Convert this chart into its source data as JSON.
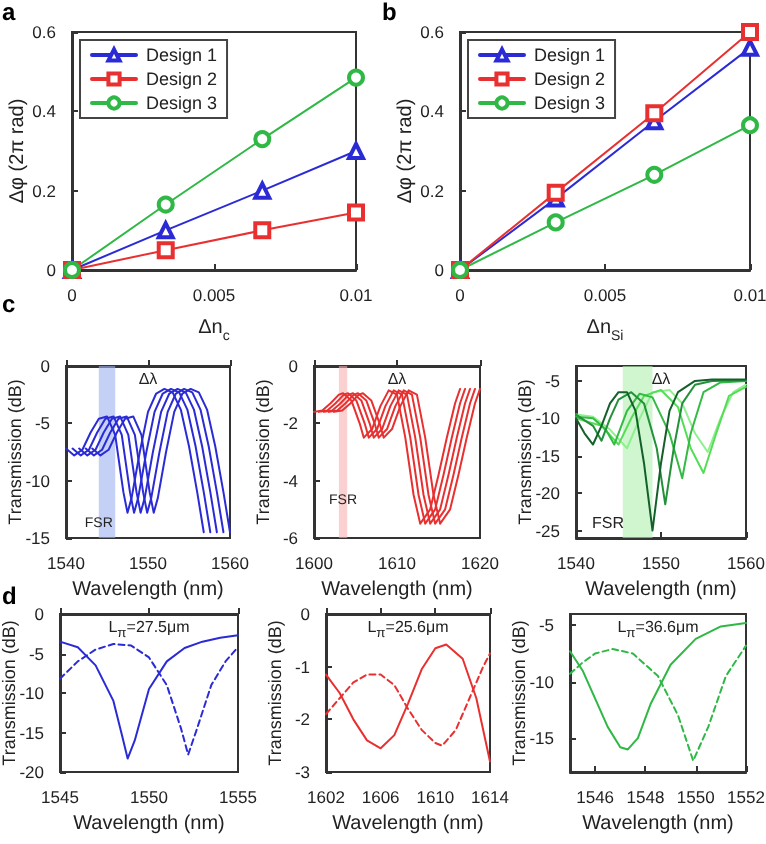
{
  "chart_data": [
    {
      "type": "line",
      "title": "a",
      "xlabel": "Δn$_{c}$",
      "ylabel": "Δφ (2π rad)",
      "xlim": [
        0,
        0.01
      ],
      "ylim": [
        0,
        0.6
      ],
      "xticks": [
        0,
        0.005,
        0.01
      ],
      "yticks": [
        0,
        0.2,
        0.4,
        0.6
      ],
      "legend": "top left",
      "x": [
        0,
        0.0033,
        0.0067,
        0.01
      ],
      "series": [
        {
          "name": "Design 1",
          "color": "#2b2bd6",
          "marker": "triangle",
          "values": [
            0,
            0.1,
            0.2,
            0.3
          ]
        },
        {
          "name": "Design 2",
          "color": "#e83030",
          "marker": "square",
          "values": [
            0,
            0.05,
            0.1,
            0.145
          ]
        },
        {
          "name": "Design 3",
          "color": "#2fb845",
          "marker": "circle",
          "values": [
            0,
            0.165,
            0.33,
            0.485
          ]
        }
      ]
    },
    {
      "type": "line",
      "title": "b",
      "xlabel": "Δn$_{Si}$",
      "ylabel": "Δφ (2π rad)",
      "xlim": [
        0,
        0.01
      ],
      "ylim": [
        0,
        0.6
      ],
      "xticks": [
        0,
        0.005,
        0.01
      ],
      "yticks": [
        0,
        0.2,
        0.4,
        0.6
      ],
      "legend": "top left",
      "x": [
        0,
        0.0033,
        0.0067,
        0.01
      ],
      "series": [
        {
          "name": "Design 1",
          "color": "#2b2bd6",
          "marker": "triangle",
          "values": [
            0,
            0.18,
            0.375,
            0.56
          ]
        },
        {
          "name": "Design 2",
          "color": "#e83030",
          "marker": "square",
          "values": [
            0,
            0.195,
            0.395,
            0.6
          ]
        },
        {
          "name": "Design 3",
          "color": "#2fb845",
          "marker": "circle",
          "values": [
            0,
            0.12,
            0.24,
            0.365
          ]
        }
      ]
    },
    {
      "type": "line",
      "title": "c",
      "xlabel": "Wavelength (nm)",
      "ylabel": "Transmission (dB)",
      "xlim": [
        1540,
        1560
      ],
      "ylim": [
        -15,
        0
      ],
      "xticks": [
        1540,
        1550,
        1560
      ],
      "yticks": [
        -15,
        -10,
        -5,
        0
      ],
      "bands": [
        {
          "axis": "x",
          "from": 1544,
          "to": 1546,
          "color": "#9fb0f0"
        }
      ],
      "annotations": [
        "Δλ",
        {
          "text": "FSR",
          "x": 1544,
          "y": -13.8
        }
      ],
      "series": [
        {
          "color": "#2b2bd6",
          "x": [
            1540,
            1541,
            1542,
            1543,
            1544,
            1545,
            1546,
            1547,
            1547.5,
            1548,
            1549,
            1550,
            1551,
            1552,
            1553,
            1554,
            1555,
            1556,
            1556.8
          ],
          "values": [
            -7.2,
            -7.8,
            -7.3,
            -5.8,
            -4.6,
            -4.4,
            -6.0,
            -11.0,
            -12.8,
            -11.5,
            -7.5,
            -4.0,
            -2.4,
            -2.0,
            -2.3,
            -3.8,
            -7.0,
            -11.0,
            -14.5
          ]
        },
        {
          "color": "#2b2bd6",
          "x": [
            1540.8,
            1541.8,
            1542.8,
            1543.8,
            1544.8,
            1545.8,
            1546.8,
            1547.8,
            1548.3,
            1548.8,
            1549.8,
            1550.8,
            1551.8,
            1552.8,
            1553.8,
            1554.8,
            1555.8,
            1556.8,
            1557.6
          ],
          "values": [
            -7.2,
            -7.8,
            -7.3,
            -5.8,
            -4.6,
            -4.4,
            -6.0,
            -11.0,
            -12.8,
            -11.5,
            -7.5,
            -4.0,
            -2.4,
            -2.0,
            -2.3,
            -3.8,
            -7.0,
            -11.0,
            -14.5
          ]
        },
        {
          "color": "#2b2bd6",
          "x": [
            1541.6,
            1542.6,
            1543.6,
            1544.6,
            1545.6,
            1546.6,
            1547.6,
            1548.6,
            1549.1,
            1549.6,
            1550.6,
            1551.6,
            1552.6,
            1553.6,
            1554.6,
            1555.6,
            1556.6,
            1557.6,
            1558.4
          ],
          "values": [
            -7.2,
            -7.8,
            -7.3,
            -5.8,
            -4.6,
            -4.4,
            -6.0,
            -11.0,
            -12.8,
            -11.5,
            -7.5,
            -4.0,
            -2.4,
            -2.0,
            -2.3,
            -3.8,
            -7.0,
            -11.0,
            -14.5
          ]
        },
        {
          "color": "#2b2bd6",
          "x": [
            1542.4,
            1543.4,
            1544.4,
            1545.4,
            1546.4,
            1547.4,
            1548.4,
            1549.4,
            1549.9,
            1550.4,
            1551.4,
            1552.4,
            1553.4,
            1554.4,
            1555.4,
            1556.4,
            1557.4,
            1558.4,
            1559.2
          ],
          "values": [
            -7.2,
            -7.8,
            -7.3,
            -5.8,
            -4.6,
            -4.4,
            -6.0,
            -11.0,
            -12.8,
            -11.5,
            -7.5,
            -4.0,
            -2.4,
            -2.0,
            -2.3,
            -3.8,
            -7.0,
            -11.0,
            -14.5
          ]
        },
        {
          "color": "#2b2bd6",
          "x": [
            1543.2,
            1544.2,
            1545.2,
            1546.2,
            1547.2,
            1548.2,
            1549.2,
            1550.2,
            1550.7,
            1551.2,
            1552.2,
            1553.2,
            1554.2,
            1555.2,
            1556.2,
            1557.2,
            1558.2,
            1559.2,
            1560
          ],
          "values": [
            -7.2,
            -7.8,
            -7.3,
            -5.8,
            -4.6,
            -4.4,
            -6.0,
            -11.0,
            -12.8,
            -11.5,
            -7.5,
            -4.0,
            -2.4,
            -2.0,
            -2.3,
            -3.8,
            -7.0,
            -11.0,
            -14.5
          ]
        }
      ]
    },
    {
      "type": "line",
      "xlabel": "Wavelength (nm)",
      "ylabel": "Transmission (dB)",
      "xlim": [
        1600,
        1620
      ],
      "ylim": [
        -6,
        0
      ],
      "xticks": [
        1600,
        1610,
        1620
      ],
      "yticks": [
        -6,
        -4,
        -2,
        0
      ],
      "bands": [
        {
          "axis": "x",
          "from": 1603,
          "to": 1604,
          "color": "#f6b0b0"
        }
      ],
      "annotations": [
        "Δλ",
        {
          "text": "FSR",
          "x": 1603.5,
          "y": -4.7
        }
      ],
      "series": [
        {
          "color": "#e83030",
          "x": [
            1600,
            1601,
            1602,
            1603,
            1603.5,
            1604.5,
            1605.5,
            1606,
            1607,
            1608,
            1609,
            1610,
            1611,
            1612,
            1612.8,
            1614,
            1615,
            1616,
            1617,
            1617.6
          ],
          "values": [
            -1.6,
            -1.55,
            -1.3,
            -1.0,
            -0.95,
            -1.2,
            -2.0,
            -2.5,
            -2.2,
            -1.4,
            -0.85,
            -1.0,
            -2.5,
            -4.5,
            -5.5,
            -5.0,
            -3.8,
            -2.5,
            -1.3,
            -0.8
          ]
        },
        {
          "color": "#e83030",
          "x": [
            1600.6,
            1601.6,
            1602.6,
            1603.6,
            1604.1,
            1605.1,
            1606.1,
            1606.6,
            1607.6,
            1608.6,
            1609.6,
            1610.6,
            1611.6,
            1612.6,
            1613.4,
            1614.6,
            1615.6,
            1616.6,
            1617.6,
            1618.2
          ],
          "values": [
            -1.6,
            -1.55,
            -1.3,
            -1.0,
            -0.95,
            -1.2,
            -2.0,
            -2.5,
            -2.2,
            -1.4,
            -0.85,
            -1.0,
            -2.5,
            -4.5,
            -5.5,
            -5.0,
            -3.8,
            -2.5,
            -1.3,
            -0.8
          ]
        },
        {
          "color": "#e83030",
          "x": [
            1601.2,
            1602.2,
            1603.2,
            1604.2,
            1604.7,
            1605.7,
            1606.7,
            1607.2,
            1608.2,
            1609.2,
            1610.2,
            1611.2,
            1612.2,
            1613.2,
            1614,
            1615.2,
            1616.2,
            1617.2,
            1618.2,
            1618.8
          ],
          "values": [
            -1.6,
            -1.55,
            -1.3,
            -1.0,
            -0.95,
            -1.2,
            -2.0,
            -2.5,
            -2.2,
            -1.4,
            -0.85,
            -1.0,
            -2.5,
            -4.5,
            -5.5,
            -5.0,
            -3.8,
            -2.5,
            -1.3,
            -0.8
          ]
        },
        {
          "color": "#e83030",
          "x": [
            1601.8,
            1602.8,
            1603.8,
            1604.8,
            1605.3,
            1606.3,
            1607.3,
            1607.8,
            1608.8,
            1609.8,
            1610.8,
            1611.8,
            1612.8,
            1613.8,
            1614.6,
            1615.8,
            1616.8,
            1617.8,
            1618.8,
            1619.4
          ],
          "values": [
            -1.6,
            -1.55,
            -1.3,
            -1.0,
            -0.95,
            -1.2,
            -2.0,
            -2.5,
            -2.2,
            -1.4,
            -0.85,
            -1.0,
            -2.5,
            -4.5,
            -5.5,
            -5.0,
            -3.8,
            -2.5,
            -1.3,
            -0.8
          ]
        },
        {
          "color": "#e83030",
          "x": [
            1602.4,
            1603.4,
            1604.4,
            1605.4,
            1605.9,
            1606.9,
            1607.9,
            1608.4,
            1609.4,
            1610.4,
            1611.4,
            1612.4,
            1613.4,
            1614.4,
            1615.2,
            1616.4,
            1617.4,
            1618.4,
            1619.4,
            1620
          ],
          "values": [
            -1.6,
            -1.55,
            -1.3,
            -1.0,
            -0.95,
            -1.2,
            -2.0,
            -2.5,
            -2.2,
            -1.4,
            -0.85,
            -1.0,
            -2.5,
            -4.5,
            -5.5,
            -5.0,
            -3.8,
            -2.5,
            -1.3,
            -0.8
          ]
        }
      ]
    },
    {
      "type": "line",
      "xlabel": "Wavelength (nm)",
      "ylabel": "Transmission (dB)",
      "xlim": [
        1540,
        1560
      ],
      "ylim": [
        -26,
        -3
      ],
      "xticks": [
        1540,
        1550,
        1560
      ],
      "yticks": [
        -25,
        -20,
        -15,
        -10,
        -5
      ],
      "bands": [
        {
          "axis": "x",
          "from": 1545.5,
          "to": 1549,
          "color": "#b0f0b0"
        }
      ],
      "annotations": [
        "Δλ",
        "FSR"
      ],
      "series": [
        {
          "color": "#8ef08e",
          "x": [
            1540,
            1542,
            1544,
            1546,
            1547.5,
            1549,
            1551,
            1552.5,
            1554,
            1555.5,
            1557,
            1558.5,
            1560
          ],
          "values": [
            -9.5,
            -9.8,
            -11.5,
            -14,
            -10,
            -6.5,
            -6.2,
            -8,
            -12,
            -14.5,
            -10,
            -6.5,
            -5.5
          ]
        },
        {
          "color": "#55dd55",
          "x": [
            1540,
            1543,
            1545,
            1546.5,
            1548,
            1550,
            1552,
            1553.5,
            1555,
            1556.5,
            1558,
            1560
          ],
          "values": [
            -10,
            -11,
            -13.5,
            -10,
            -7,
            -6.2,
            -8.5,
            -14,
            -17.3,
            -12,
            -7,
            -5.8
          ]
        },
        {
          "color": "#33bb44",
          "x": [
            1540,
            1542,
            1543.5,
            1544.5,
            1546,
            1547.5,
            1549,
            1551,
            1552.5,
            1553.5,
            1555,
            1557,
            1560
          ],
          "values": [
            -9.8,
            -10,
            -11.5,
            -13.5,
            -9,
            -6.7,
            -7.2,
            -12,
            -18,
            -12,
            -6.5,
            -5.2,
            -5
          ]
        },
        {
          "color": "#22913a",
          "x": [
            1540,
            1542,
            1543,
            1544,
            1545,
            1546.5,
            1548,
            1549.5,
            1550.5,
            1551.5,
            1552.5,
            1554,
            1556,
            1560
          ],
          "values": [
            -9.5,
            -11,
            -13,
            -10,
            -7.5,
            -6.5,
            -8,
            -14,
            -21.5,
            -14,
            -8,
            -5.5,
            -5,
            -4.9
          ]
        },
        {
          "color": "#14602a",
          "x": [
            1540,
            1541,
            1542,
            1543,
            1544,
            1545,
            1546,
            1547,
            1548,
            1549,
            1550,
            1551,
            1552,
            1554,
            1556,
            1560
          ],
          "values": [
            -10,
            -12,
            -13.5,
            -11,
            -8,
            -6.5,
            -6.5,
            -9,
            -16,
            -25,
            -16,
            -9,
            -6.5,
            -5,
            -4.8,
            -4.8
          ]
        }
      ]
    },
    {
      "type": "line",
      "title": "d",
      "xlabel": "Wavelength (nm)",
      "ylabel": "Transmission (dB)",
      "xlim": [
        1545,
        1555
      ],
      "ylim": [
        -20,
        0
      ],
      "xticks": [
        1545,
        1550,
        1555
      ],
      "yticks": [
        -20,
        -15,
        -10,
        -5,
        0
      ],
      "annotations": [
        "L$_{π}$=27.5μm"
      ],
      "series": [
        {
          "color": "#2b2bd6",
          "line_style": "solid",
          "x": [
            1545,
            1546,
            1547,
            1548,
            1548.5,
            1548.8,
            1549.2,
            1550,
            1551,
            1552,
            1553,
            1554,
            1555
          ],
          "values": [
            -3.5,
            -4.2,
            -6.5,
            -11,
            -15.5,
            -18.3,
            -16,
            -9.5,
            -6,
            -4.3,
            -3.5,
            -3,
            -2.7
          ]
        },
        {
          "color": "#2b2bd6",
          "line_style": "dashed",
          "x": [
            1545,
            1546,
            1547,
            1548,
            1549,
            1550,
            1551,
            1551.8,
            1552.2,
            1552.7,
            1553.5,
            1554.3,
            1555
          ],
          "values": [
            -8.2,
            -6,
            -4.5,
            -3.8,
            -4,
            -5.5,
            -9,
            -14.5,
            -17.8,
            -14.5,
            -9,
            -6,
            -4.2
          ]
        }
      ]
    },
    {
      "type": "line",
      "xlabel": "Wavelength (nm)",
      "ylabel": "Transmission (dB)",
      "xlim": [
        1602,
        1614
      ],
      "ylim": [
        -3,
        0
      ],
      "xticks": [
        1602,
        1606,
        1610,
        1614
      ],
      "yticks": [
        -3,
        -2,
        -1,
        0
      ],
      "annotations": [
        "L$_{π}$=25.6μm"
      ],
      "series": [
        {
          "color": "#e83030",
          "line_style": "solid",
          "x": [
            1602,
            1603,
            1604,
            1605,
            1606,
            1607,
            1608,
            1609,
            1610,
            1610.8,
            1612,
            1613,
            1614
          ],
          "values": [
            -1.15,
            -1.5,
            -2.0,
            -2.4,
            -2.55,
            -2.3,
            -1.7,
            -1.05,
            -0.65,
            -0.58,
            -0.85,
            -1.6,
            -2.8
          ]
        },
        {
          "color": "#e83030",
          "line_style": "dashed",
          "x": [
            1602,
            1603,
            1604,
            1605,
            1606,
            1607,
            1608,
            1609,
            1610,
            1610.5,
            1611.5,
            1612.5,
            1613.5,
            1614
          ],
          "values": [
            -1.9,
            -1.6,
            -1.3,
            -1.15,
            -1.15,
            -1.35,
            -1.8,
            -2.2,
            -2.45,
            -2.5,
            -2.2,
            -1.6,
            -1.0,
            -0.75
          ]
        }
      ]
    },
    {
      "type": "line",
      "xlabel": "Wavelength (nm)",
      "ylabel": "Transmission (dB)",
      "xlim": [
        1545,
        1552
      ],
      "ylim": [
        -18,
        -4
      ],
      "xticks": [
        1546,
        1548,
        1550,
        1552
      ],
      "yticks": [
        -15,
        -10,
        -5
      ],
      "annotations": [
        "L$_{π}$=36.6μm"
      ],
      "series": [
        {
          "color": "#2fb845",
          "line_style": "solid",
          "x": [
            1545,
            1545.5,
            1546,
            1546.5,
            1547,
            1547.3,
            1547.7,
            1548.2,
            1549,
            1550,
            1551,
            1552
          ],
          "values": [
            -7.3,
            -9,
            -11.5,
            -14,
            -15.8,
            -16,
            -15,
            -12,
            -8.5,
            -6.2,
            -5.1,
            -4.8
          ]
        },
        {
          "color": "#2fb845",
          "line_style": "dashed",
          "x": [
            1545,
            1545.5,
            1546,
            1546.7,
            1547.5,
            1548.5,
            1549.3,
            1549.9,
            1550.5,
            1551.2,
            1552
          ],
          "values": [
            -9.3,
            -8.3,
            -7.5,
            -7.1,
            -7.5,
            -9.5,
            -13,
            -17,
            -14,
            -9.5,
            -6.8
          ]
        }
      ]
    }
  ]
}
